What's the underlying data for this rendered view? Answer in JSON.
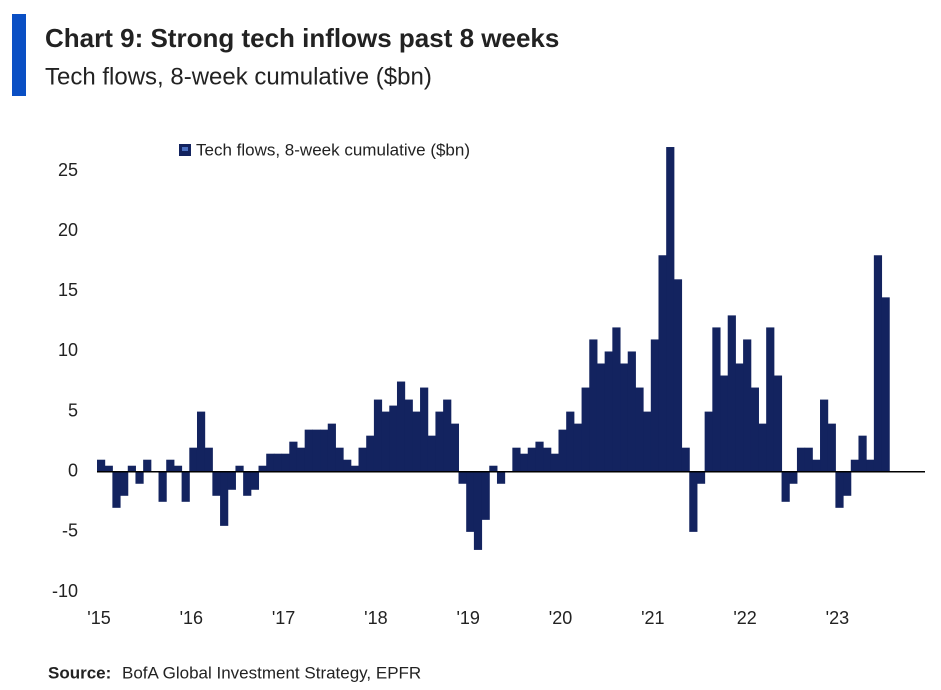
{
  "chart_data": {
    "type": "bar",
    "title": "Chart 9: Strong tech inflows past 8 weeks",
    "subtitle": "Tech flows, 8-week cumulative ($bn)",
    "source_label": "Source:",
    "source": "BofA Global Investment Strategy, EPFR",
    "categories": [
      "'15",
      null,
      null,
      null,
      null,
      null,
      null,
      null,
      null,
      null,
      null,
      null,
      "'16",
      null,
      null,
      null,
      null,
      null,
      null,
      null,
      null,
      null,
      null,
      null,
      "'17",
      null,
      null,
      null,
      null,
      null,
      null,
      null,
      null,
      null,
      null,
      null,
      "'18",
      null,
      null,
      null,
      null,
      null,
      null,
      null,
      null,
      null,
      null,
      null,
      "'19",
      null,
      null,
      null,
      null,
      null,
      null,
      null,
      null,
      null,
      null,
      null,
      "'20",
      null,
      null,
      null,
      null,
      null,
      null,
      null,
      null,
      null,
      null,
      null,
      "'21",
      null,
      null,
      null,
      null,
      null,
      null,
      null,
      null,
      null,
      null,
      null,
      "'22",
      null,
      null,
      null,
      null,
      null,
      null,
      null,
      null,
      null,
      null,
      null,
      "'23",
      null,
      null,
      null,
      null,
      null,
      null
    ],
    "series": [
      {
        "name": "Tech flows, 8-week cumulative ($bn)",
        "color": "#13235f",
        "values": [
          1,
          0.5,
          -3,
          -2,
          0.5,
          -1,
          1,
          0,
          -2.5,
          1,
          0.5,
          -2.5,
          2,
          5,
          2,
          -2,
          -4.5,
          -1.5,
          0.5,
          -2,
          -1.5,
          0.5,
          1.5,
          1.5,
          1.5,
          2.5,
          2,
          3.5,
          3.5,
          3.5,
          4,
          2,
          1,
          0.5,
          2,
          3,
          6,
          5,
          5.5,
          7.5,
          6,
          5,
          7,
          3,
          5,
          6,
          4,
          -1,
          -5,
          -6.5,
          -4,
          0.5,
          -1,
          0,
          2,
          1.5,
          2,
          2.5,
          2,
          1.5,
          3.5,
          5,
          4,
          7,
          11,
          9,
          10,
          12,
          9,
          10,
          7,
          5,
          11,
          18,
          27,
          16,
          2,
          -5,
          -1,
          5,
          12,
          8,
          13,
          9,
          11,
          7,
          4,
          12,
          8,
          -2.5,
          -1,
          2,
          2,
          1,
          6,
          4,
          -3,
          -2,
          1,
          3,
          1,
          18,
          14.5
        ]
      }
    ],
    "ylim": [
      -10,
      28
    ],
    "yticks": [
      -10,
      -5,
      0,
      5,
      10,
      15,
      20,
      25
    ],
    "grid": false
  }
}
